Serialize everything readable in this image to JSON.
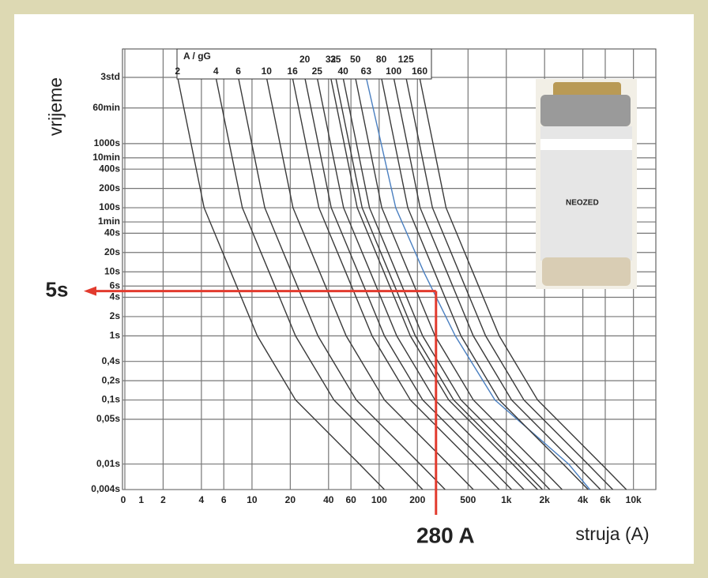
{
  "chart_data": {
    "type": "line",
    "y_title": "vrijeme",
    "x_title": "struja (A)",
    "legend_title": "A / gG",
    "xscale": "log",
    "yscale": "log",
    "grid": true,
    "xlim": [
      1,
      15000
    ],
    "ylim": [
      0.004,
      30000
    ],
    "x_origin_label": "0",
    "xticks": [
      1,
      2,
      4,
      6,
      10,
      20,
      40,
      60,
      100,
      200,
      500,
      {
        "value": 1000,
        "label": "1k"
      },
      {
        "value": 2000,
        "label": "2k"
      },
      {
        "value": 4000,
        "label": "4k"
      },
      {
        "value": 6000,
        "label": "6k"
      },
      {
        "value": 10000,
        "label": "10k"
      }
    ],
    "yticks": [
      {
        "value": 10800,
        "label": "3std"
      },
      {
        "value": 3600,
        "label": "60min"
      },
      {
        "value": 1000,
        "label": "1000s"
      },
      {
        "value": 600,
        "label": "10min"
      },
      {
        "value": 400,
        "label": "400s"
      },
      {
        "value": 200,
        "label": "200s"
      },
      {
        "value": 100,
        "label": "100s"
      },
      {
        "value": 60,
        "label": "1min"
      },
      {
        "value": 40,
        "label": "40s"
      },
      {
        "value": 20,
        "label": "20s"
      },
      {
        "value": 10,
        "label": "10s"
      },
      {
        "value": 6,
        "label": "6s"
      },
      {
        "value": 4,
        "label": "4s"
      },
      {
        "value": 2,
        "label": "2s"
      },
      {
        "value": 1,
        "label": "1s"
      },
      {
        "value": 0.4,
        "label": "0,4s"
      },
      {
        "value": 0.2,
        "label": "0,2s"
      },
      {
        "value": 0.1,
        "label": "0,1s"
      },
      {
        "value": 0.05,
        "label": "0,05s"
      },
      {
        "value": 0.01,
        "label": "0,01s"
      },
      {
        "value": 0.004,
        "label": "0,004s"
      }
    ],
    "annotation": {
      "x": 280,
      "y": 5,
      "x_label": "280 A",
      "y_label": "5s",
      "color": "#e23b2e"
    },
    "photo_label": "NEOZED",
    "series": [
      {
        "name": "2",
        "color": "#3a3a3a",
        "x": [
          2.6,
          4.2,
          6.8,
          11,
          22,
          70,
          110
        ],
        "values": [
          10800,
          100,
          10,
          1,
          0.1,
          0.01,
          0.004
        ]
      },
      {
        "name": "4",
        "color": "#3a3a3a",
        "x": [
          5.2,
          8.4,
          13.6,
          22,
          44,
          140,
          220
        ],
        "values": [
          10800,
          100,
          10,
          1,
          0.1,
          0.01,
          0.004
        ]
      },
      {
        "name": "6",
        "color": "#3a3a3a",
        "x": [
          7.8,
          12.6,
          20.4,
          33,
          66,
          210,
          330
        ],
        "values": [
          10800,
          100,
          10,
          1,
          0.1,
          0.01,
          0.004
        ]
      },
      {
        "name": "10",
        "color": "#3a3a3a",
        "x": [
          13,
          21,
          34,
          55,
          110,
          350,
          550
        ],
        "values": [
          10800,
          100,
          10,
          1,
          0.1,
          0.01,
          0.004
        ]
      },
      {
        "name": "16",
        "color": "#3a3a3a",
        "x": [
          20.8,
          33.6,
          54.4,
          88,
          176,
          560,
          880
        ],
        "values": [
          10800,
          100,
          10,
          1,
          0.1,
          0.01,
          0.004
        ]
      },
      {
        "name": "20",
        "color": "#3a3a3a",
        "x": [
          26,
          42,
          68,
          110,
          220,
          700,
          1100
        ],
        "values": [
          10800,
          100,
          10,
          1,
          0.1,
          0.01,
          0.004
        ]
      },
      {
        "name": "25",
        "color": "#3a3a3a",
        "x": [
          32.5,
          52.5,
          85,
          137.5,
          275,
          875,
          1375
        ],
        "values": [
          10800,
          100,
          10,
          1,
          0.1,
          0.01,
          0.004
        ]
      },
      {
        "name": "32",
        "color": "#3a3a3a",
        "x": [
          41.6,
          67.2,
          108.8,
          176,
          352,
          1120,
          1760
        ],
        "values": [
          10800,
          100,
          10,
          1,
          0.1,
          0.01,
          0.004
        ]
      },
      {
        "name": "35",
        "color": "#3a3a3a",
        "x": [
          45.5,
          73.5,
          119,
          192.5,
          385,
          1225,
          1925
        ],
        "values": [
          10800,
          100,
          10,
          1,
          0.1,
          0.01,
          0.004
        ]
      },
      {
        "name": "40",
        "color": "#3a3a3a",
        "x": [
          52,
          84,
          136,
          220,
          440,
          1400,
          2200
        ],
        "values": [
          10800,
          100,
          10,
          1,
          0.1,
          0.01,
          0.004
        ]
      },
      {
        "name": "50",
        "color": "#3a3a3a",
        "x": [
          65,
          105,
          170,
          275,
          550,
          1750,
          2750
        ],
        "values": [
          10800,
          100,
          10,
          1,
          0.1,
          0.01,
          0.004
        ]
      },
      {
        "name": "63",
        "color": "#4a7fc0",
        "label_color": "#e23b2e",
        "x": [
          79,
          135,
          224,
          397,
          813,
          3090,
          4540
        ],
        "values": [
          10800,
          100,
          10,
          1,
          0.1,
          0.01,
          0.004
        ]
      },
      {
        "name": "80",
        "color": "#3a3a3a",
        "x": [
          104,
          168,
          272,
          440,
          880,
          2800,
          4400
        ],
        "values": [
          10800,
          100,
          10,
          1,
          0.1,
          0.01,
          0.004
        ]
      },
      {
        "name": "100",
        "color": "#3a3a3a",
        "x": [
          130,
          210,
          340,
          550,
          1100,
          3500,
          5500
        ],
        "values": [
          10800,
          100,
          10,
          1,
          0.1,
          0.01,
          0.004
        ]
      },
      {
        "name": "125",
        "color": "#3a3a3a",
        "x": [
          162.5,
          262.5,
          425,
          687.5,
          1375,
          4375,
          6875
        ],
        "values": [
          10800,
          100,
          10,
          1,
          0.1,
          0.01,
          0.004
        ]
      },
      {
        "name": "160",
        "color": "#3a3a3a",
        "x": [
          208,
          336,
          544,
          880,
          1760,
          5600,
          8800
        ],
        "values": [
          10800,
          100,
          10,
          1,
          0.1,
          0.01,
          0.004
        ]
      }
    ]
  }
}
